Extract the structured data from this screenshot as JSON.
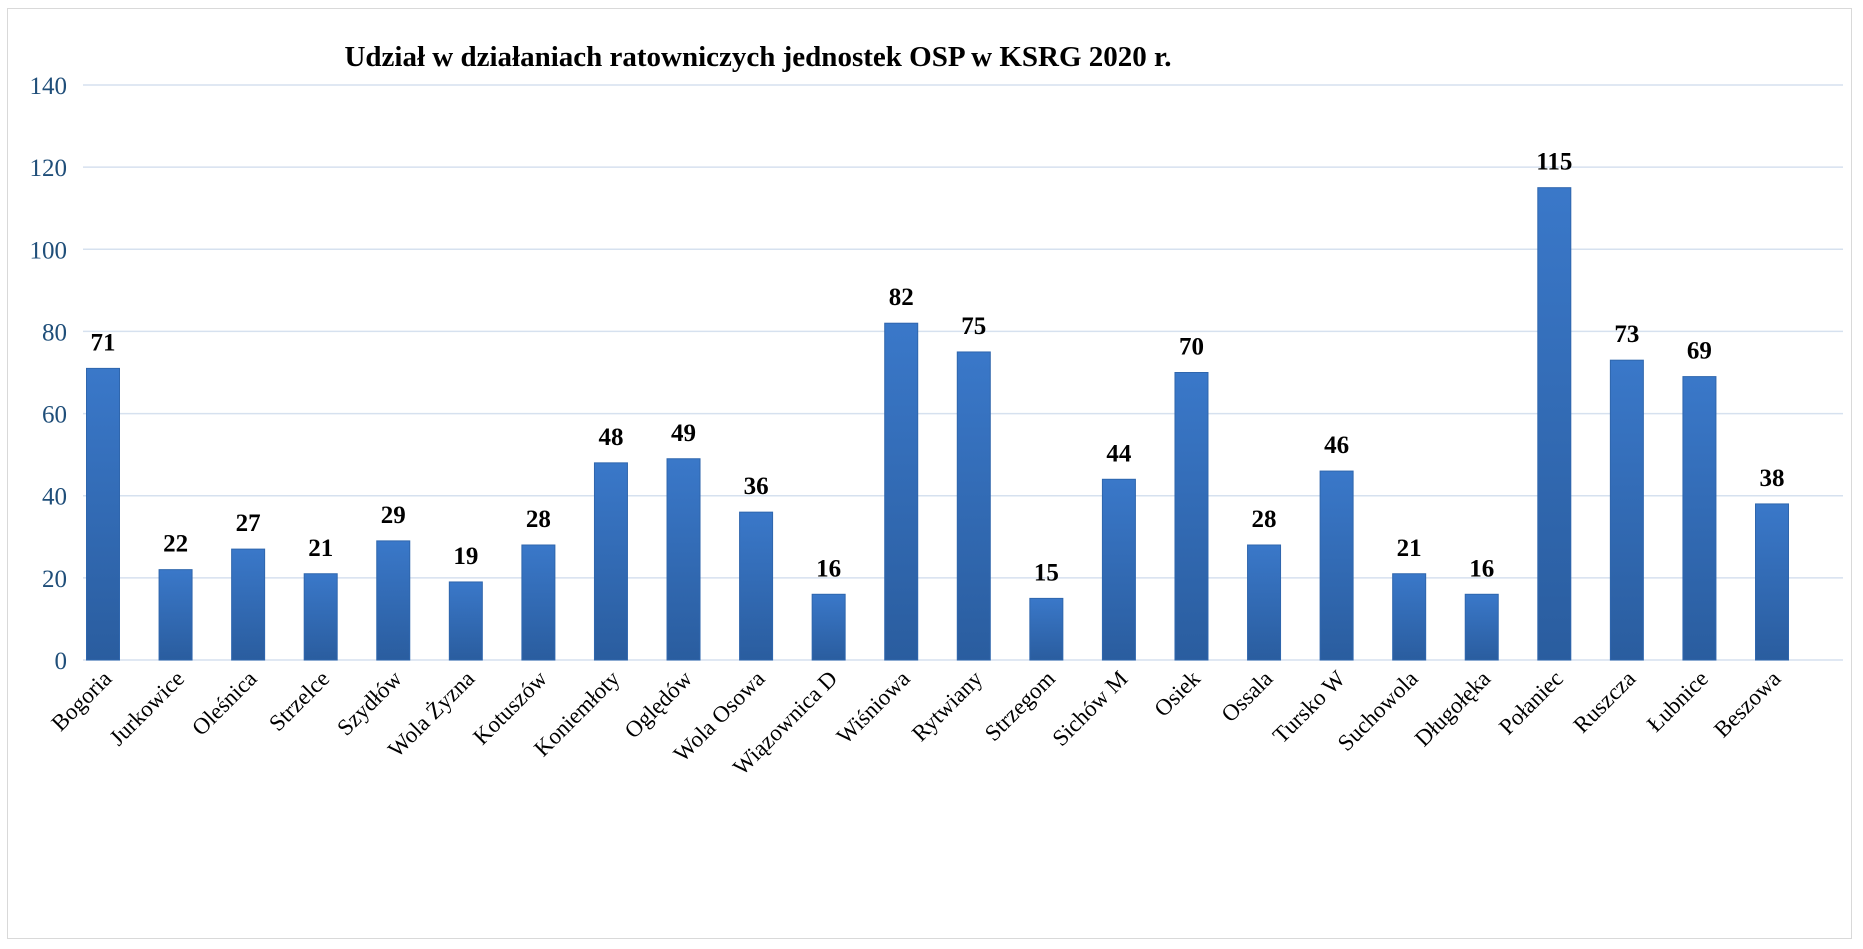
{
  "chart_data": {
    "type": "bar",
    "title": "Udział w działaniach ratowniczych jednostek OSP w KSRG 2020 r.",
    "xlabel": "",
    "ylabel": "",
    "ylim": [
      0,
      140
    ],
    "yticks": [
      0,
      20,
      40,
      60,
      80,
      100,
      120,
      140
    ],
    "grid": true,
    "legend": "none",
    "bar_color": "#3a78c9",
    "bar_color_dark": "#2a5d9f",
    "categories": [
      "Bogoria",
      "Jurkowice",
      "Oleśnica",
      "Strzelce",
      "Szydłów",
      "Wola Żyzna",
      "Kotuszów",
      "Koniemłoty",
      "Oględów",
      "Wola Osowa",
      "Wiązownica D",
      "Wiśniowa",
      "Rytwiany",
      "Strzegom",
      "Sichów M",
      "Osiek",
      "Ossala",
      "Tursko W",
      "Suchowola",
      "Długołęka",
      "Połaniec",
      "Ruszcza",
      "Łubnice",
      "Beszowa"
    ],
    "values": [
      71,
      22,
      27,
      21,
      29,
      19,
      28,
      48,
      49,
      36,
      16,
      82,
      75,
      15,
      44,
      70,
      28,
      46,
      21,
      16,
      115,
      73,
      69,
      38
    ]
  }
}
